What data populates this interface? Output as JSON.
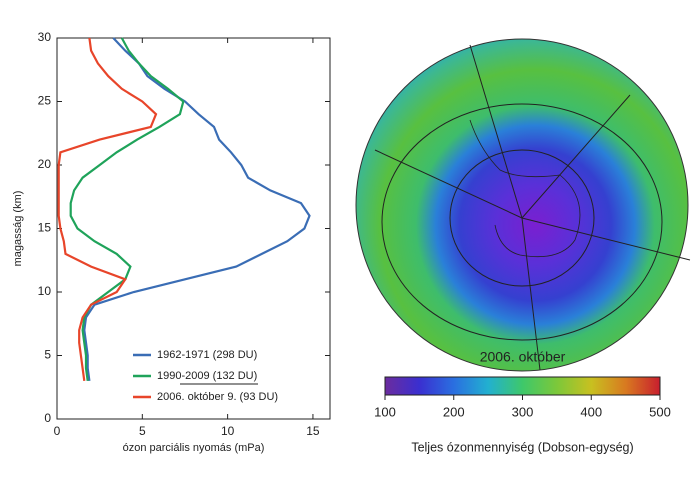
{
  "chart_data": [
    {
      "type": "line",
      "xlabel": "ózon parciális nyomás (mPa)",
      "ylabel": "magasság (km)",
      "xlim": [
        0,
        16
      ],
      "xticks": [
        0,
        5,
        10,
        15
      ],
      "ylim": [
        0,
        30
      ],
      "yticks": [
        0,
        5,
        10,
        15,
        20,
        25,
        30
      ],
      "y": [
        3,
        4,
        5,
        6,
        7,
        8,
        9,
        10,
        11,
        12,
        13,
        14,
        15,
        16,
        17,
        18,
        19,
        20,
        21,
        22,
        23,
        24,
        25,
        26,
        27,
        28,
        29,
        30
      ],
      "series": [
        {
          "name": "1962-1971 (298 DU)",
          "color": "#3a6db5",
          "values": [
            1.9,
            1.8,
            1.8,
            1.7,
            1.6,
            1.7,
            2.2,
            4.5,
            7.5,
            10.5,
            12,
            13.5,
            14.5,
            14.8,
            14.3,
            12.5,
            11.2,
            10.8,
            10.2,
            9.5,
            9.2,
            8.3,
            7.5,
            6.3,
            5.3,
            4.8,
            4.0,
            3.3
          ]
        },
        {
          "name": "1990-2009 (132 DU)",
          "color": "#1fa35a",
          "values": [
            1.8,
            1.7,
            1.7,
            1.6,
            1.5,
            1.6,
            2.0,
            3.0,
            4.0,
            4.3,
            3.5,
            2.2,
            1.2,
            0.8,
            0.8,
            1.0,
            1.5,
            2.5,
            3.5,
            4.7,
            6.0,
            7.2,
            7.4,
            6.5,
            5.5,
            4.8,
            4.2,
            3.8
          ]
        },
        {
          "name": "2006. október 9. (93 DU)",
          "color": "#e8452a",
          "values": [
            1.6,
            1.5,
            1.4,
            1.3,
            1.3,
            1.5,
            2.0,
            3.5,
            4.0,
            2.0,
            0.5,
            0.4,
            0.2,
            0.1,
            0.1,
            0.1,
            0.1,
            0.1,
            0.2,
            2.5,
            5.5,
            5.8,
            5.0,
            3.8,
            3.0,
            2.4,
            2.0,
            1.9
          ]
        }
      ]
    },
    {
      "type": "colorbar",
      "title": "2006. október",
      "xlabel": "Teljes ózonmennyiség (Dobson-egység)",
      "xlim": [
        100,
        500
      ],
      "xticks": [
        100,
        200,
        300,
        400,
        500
      ],
      "colors": [
        "#6b2c9e",
        "#3a2fd0",
        "#2a6fe0",
        "#22b0d0",
        "#3ec86a",
        "#7cc83a",
        "#c8c020",
        "#d87a20",
        "#c81e2e"
      ]
    }
  ]
}
